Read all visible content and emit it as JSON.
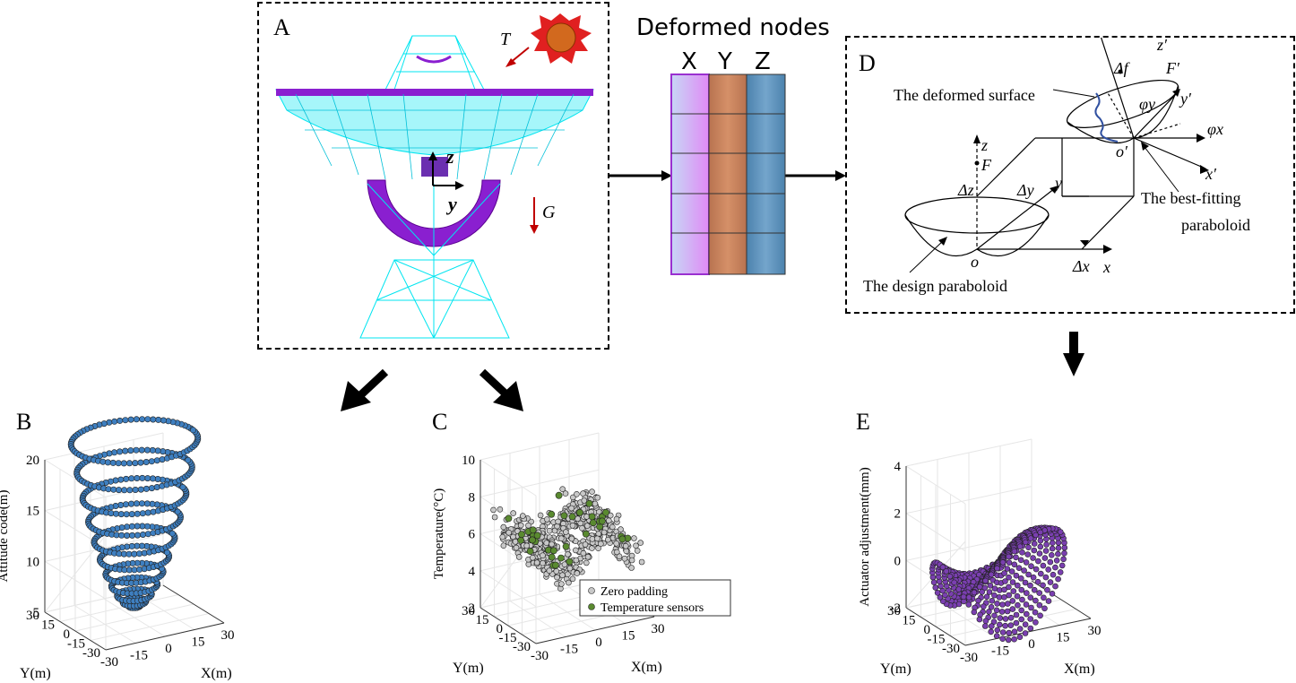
{
  "panels": {
    "A": {
      "label": "A",
      "force_T": "T",
      "force_G": "G",
      "axis_z": "z",
      "axis_y": "y"
    },
    "B": {
      "label": "B",
      "zlabel": "Attitude code(m)",
      "xlabel": "X(m)",
      "ylabel": "Y(m)",
      "zticks": [
        "20",
        "15",
        "10",
        "5"
      ],
      "xticks": [
        "-30",
        "-15",
        "0",
        "15",
        "30"
      ],
      "yticks": [
        "30",
        "15",
        "0",
        "-15",
        "-30"
      ]
    },
    "C": {
      "label": "C",
      "zlabel": "Temperature(°C)",
      "xlabel": "X(m)",
      "ylabel": "Y(m)",
      "zticks": [
        "10",
        "8",
        "6",
        "4",
        "2"
      ],
      "xticks": [
        "-30",
        "-15",
        "0",
        "15",
        "30"
      ],
      "yticks": [
        "30",
        "15",
        "0",
        "-15",
        "-30"
      ],
      "legend": [
        "Zero padding",
        "Temperature sensors"
      ]
    },
    "D": {
      "label": "D",
      "deformed_surface": "The deformed surface",
      "best_fit_1": "The best-fitting",
      "best_fit_2": "paraboloid",
      "design": "The design paraboloid",
      "o": "o",
      "o_prime": "o′",
      "F": "F",
      "F_prime": "F′",
      "z": "z",
      "z_prime": "z′",
      "x": "x",
      "x_prime": "x′",
      "y": "y",
      "y_prime": "y′",
      "dx": "Δx",
      "dy": "Δy",
      "dz": "Δz",
      "df": "Δf",
      "phi_x": "φx",
      "phi_y": "φy"
    },
    "E": {
      "label": "E",
      "zlabel": "Actuator adjustment(mm)",
      "xlabel": "X(m)",
      "ylabel": "Y(m)",
      "zticks": [
        "4",
        "2",
        "0",
        "-2"
      ],
      "xticks": [
        "-30",
        "-15",
        "0",
        "15",
        "30"
      ],
      "yticks": [
        "30",
        "15",
        "0",
        "-15",
        "-30"
      ]
    }
  },
  "matrix": {
    "title": "Deformed nodes",
    "columns": [
      "X",
      "Y",
      "Z"
    ],
    "rows": 5,
    "colors": [
      "#d8b8f0",
      "#c98a5e",
      "#5a8fb8"
    ]
  },
  "colors": {
    "truss": "#00e5f0",
    "dish": "#8a1fd0",
    "arrow_red": "#c00000",
    "blue_pts": "#3e7fc0",
    "grey_pts": "#c8c8c8",
    "green_pts": "#5a8a30",
    "purple_pts": "#7a3fb0"
  }
}
